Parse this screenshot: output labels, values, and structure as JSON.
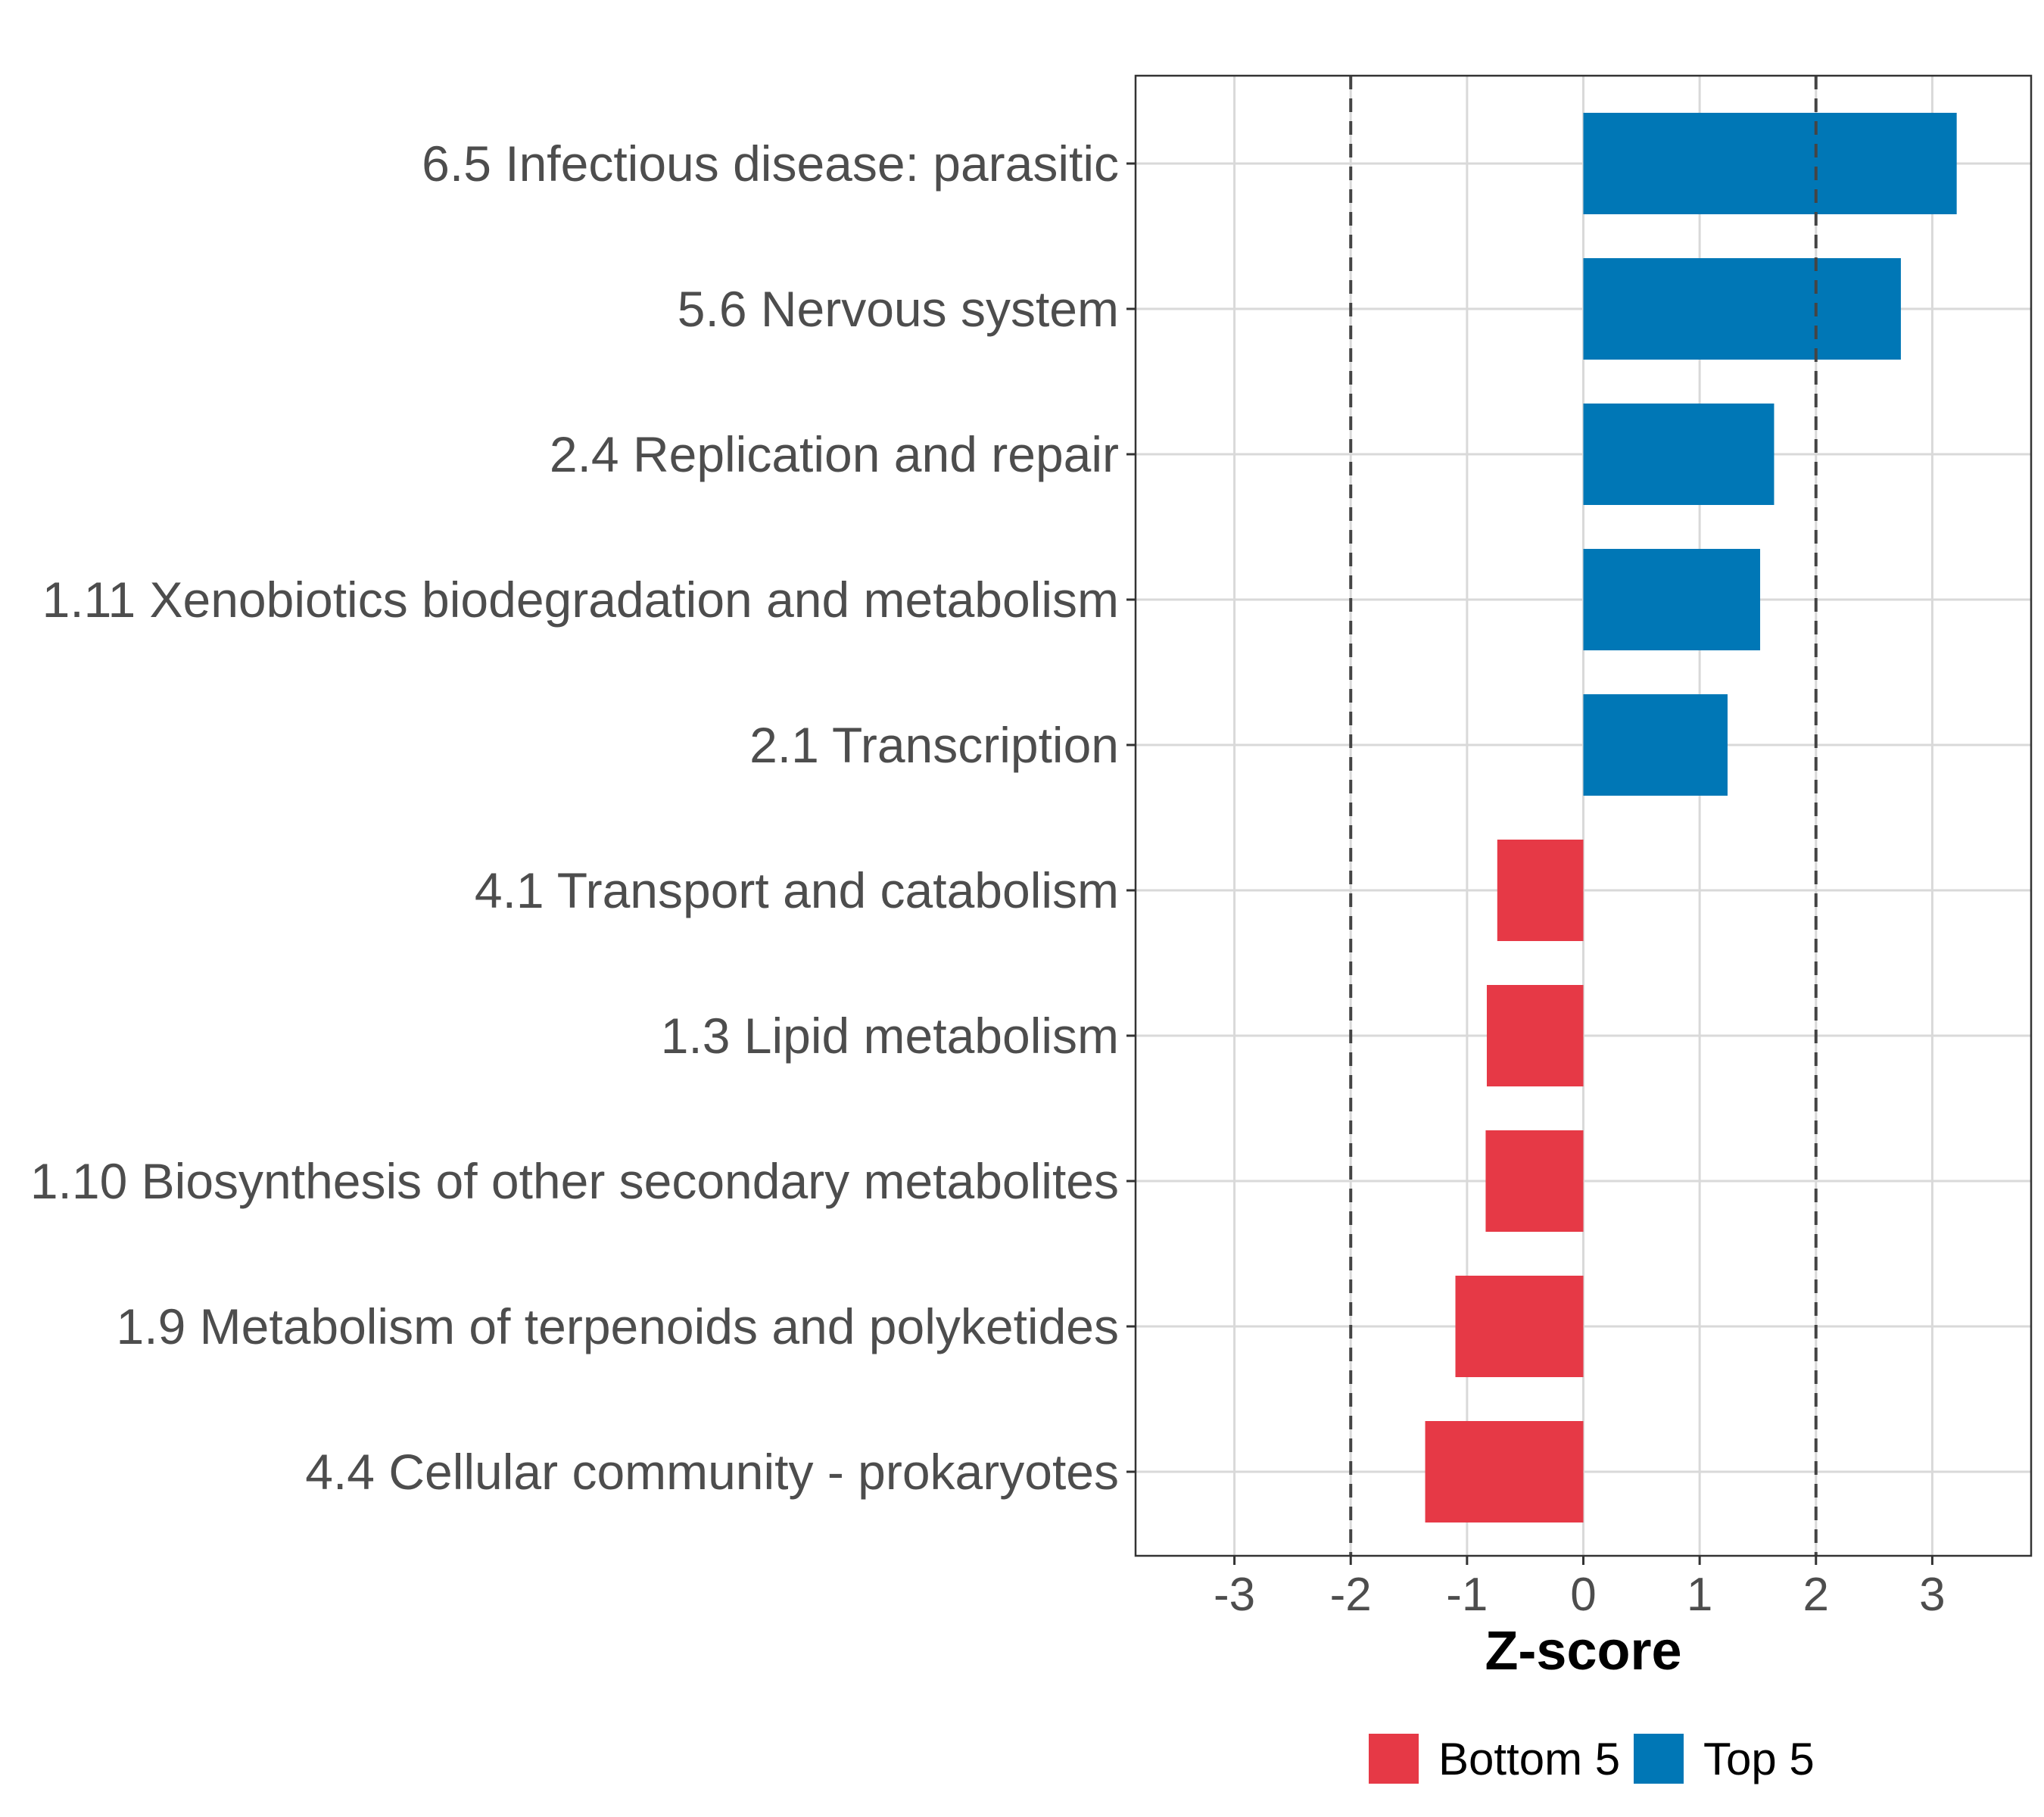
{
  "chart_data": {
    "type": "bar",
    "orientation": "horizontal",
    "categories": [
      "6.5 Infectious disease: parasitic",
      "5.6 Nervous system",
      "2.4 Replication and repair",
      "1.11 Xenobiotics biodegradation and metabolism",
      "2.1 Transcription",
      "4.1 Transport and catabolism",
      "1.3 Lipid metabolism",
      "1.10 Biosynthesis of other secondary metabolites",
      "1.9 Metabolism of terpenoids and polyketides",
      "4.4 Cellular community - prokaryotes"
    ],
    "values": [
      3.21,
      2.73,
      1.64,
      1.52,
      1.24,
      -0.74,
      -0.83,
      -0.84,
      -1.1,
      -1.36
    ],
    "groups": [
      "Top 5",
      "Top 5",
      "Top 5",
      "Top 5",
      "Top 5",
      "Bottom 5",
      "Bottom 5",
      "Bottom 5",
      "Bottom 5",
      "Bottom 5"
    ],
    "xlabel": "Z-score",
    "ylabel": "",
    "xlim": [
      -3.85,
      3.85
    ],
    "xticks": [
      -3,
      -2,
      -1,
      0,
      1,
      2,
      3
    ],
    "xtick_labels": [
      "-3",
      "-2",
      "-1",
      "0",
      "1",
      "2",
      "3"
    ],
    "reference_lines": [
      -2,
      2
    ],
    "grid": true,
    "legend": {
      "position": "bottom",
      "entries": [
        {
          "label": "Bottom 5",
          "color": "#e63946"
        },
        {
          "label": "Top 5",
          "color": "#0077b6"
        }
      ]
    },
    "colors": {
      "Top 5": "#0077b6",
      "Bottom 5": "#e63946"
    }
  }
}
